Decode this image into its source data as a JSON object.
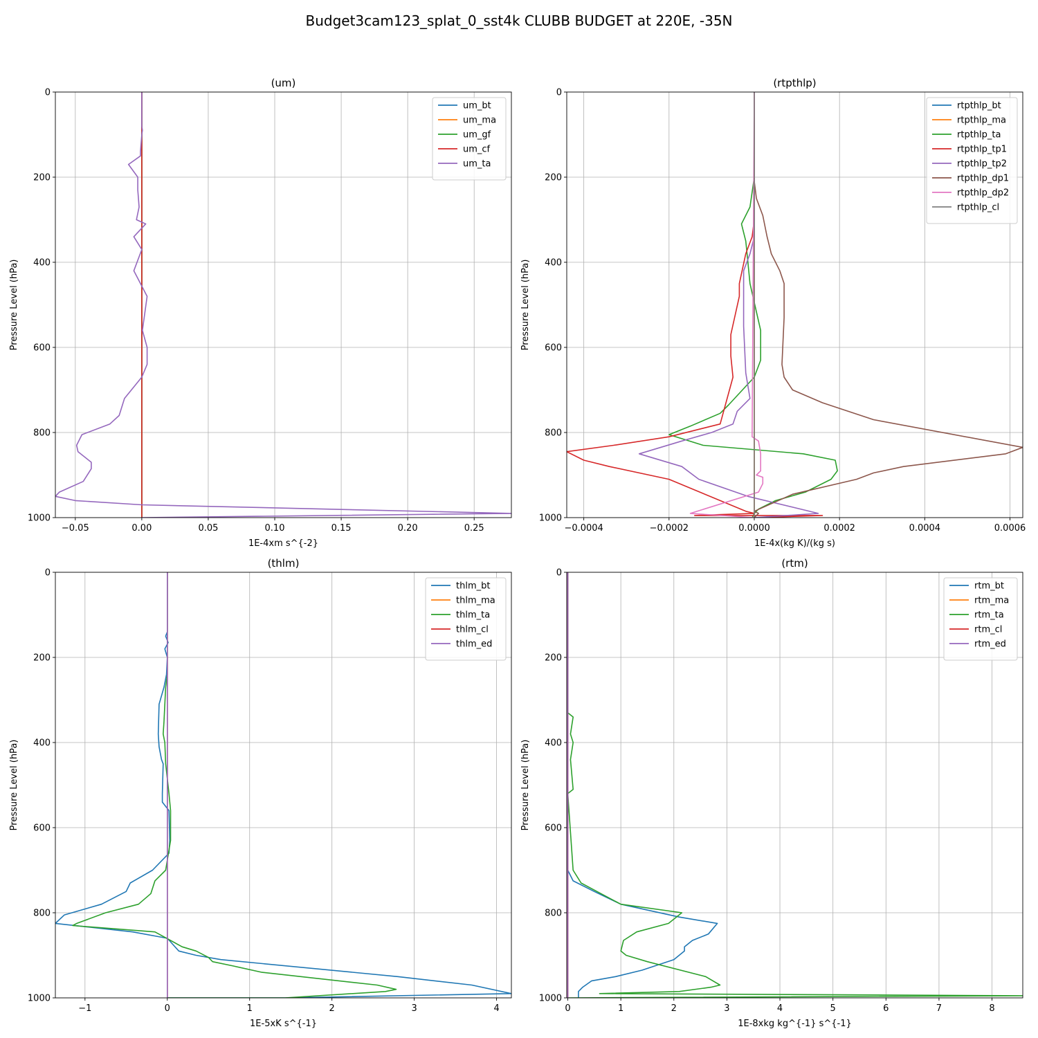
{
  "figure": {
    "title": "Budget3cam123_splat_0_sst4k CLUBB BUDGET at 220E, -35N"
  },
  "chart_data": [
    {
      "type": "line",
      "title": "(um)",
      "xlabel": "1E-4xm s^{-2}",
      "ylabel": "Pressure Level (hPa)",
      "xlim": [
        -0.065,
        0.278
      ],
      "ylim": [
        1000,
        0
      ],
      "xticks": [
        -0.05,
        0.0,
        0.05,
        0.1,
        0.15,
        0.2,
        0.25
      ],
      "xtick_labels": [
        "−0.05",
        "0.00",
        "0.05",
        "0.10",
        "0.15",
        "0.20",
        "0.25"
      ],
      "yticks": [
        0,
        200,
        400,
        600,
        800,
        1000
      ],
      "grid": true,
      "legend_position": "upper right",
      "series": [
        {
          "name": "um_bt",
          "color": "#1f77b4",
          "x": [
            0,
            0
          ],
          "p": [
            0,
            1000
          ]
        },
        {
          "name": "um_ma",
          "color": "#ff7f0e",
          "x": [
            0,
            0
          ],
          "p": [
            0,
            1000
          ]
        },
        {
          "name": "um_gf",
          "color": "#2ca02c",
          "x": [
            0,
            0
          ],
          "p": [
            0,
            1000
          ]
        },
        {
          "name": "um_cf",
          "color": "#d62728",
          "x": [
            0,
            0
          ],
          "p": [
            0,
            1000
          ]
        },
        {
          "name": "um_ta",
          "color": "#9467bd",
          "x": [
            0,
            0,
            0.0005,
            0,
            -0.001,
            -0.001,
            -0.01,
            -0.003,
            -0.003,
            -0.002,
            -0.004,
            0.003,
            -0.006,
            0,
            -0.006,
            0.004,
            0.0005,
            0.004,
            0.004,
            0,
            -0.013,
            -0.017,
            -0.024,
            -0.045,
            -0.049,
            -0.048,
            -0.038,
            -0.038,
            -0.044,
            -0.062,
            -0.065,
            -0.05,
            0,
            0.278,
            0
          ],
          "p": [
            0,
            80,
            90,
            100,
            140,
            150,
            170,
            200,
            230,
            270,
            300,
            310,
            340,
            370,
            420,
            480,
            560,
            600,
            640,
            670,
            720,
            760,
            780,
            805,
            830,
            845,
            870,
            885,
            915,
            940,
            950,
            960,
            970,
            990,
            1000
          ]
        }
      ]
    },
    {
      "type": "line",
      "title": "(rtpthlp)",
      "xlabel": "1E-4x(kg K)/(kg s)",
      "ylabel": "Pressure Level (hPa)",
      "xlim": [
        -0.00044,
        0.00063
      ],
      "ylim": [
        1000,
        0
      ],
      "xticks": [
        -0.0004,
        -0.0002,
        0.0,
        0.0002,
        0.0004,
        0.0006
      ],
      "xtick_labels": [
        "−0.0004",
        "−0.0002",
        "0.0000",
        "0.0002",
        "0.0004",
        "0.0006"
      ],
      "yticks": [
        0,
        200,
        400,
        600,
        800,
        1000
      ],
      "grid": true,
      "legend_position": "upper right",
      "series": [
        {
          "name": "rtpthlp_bt",
          "color": "#1f77b4",
          "x": [
            0,
            0
          ],
          "p": [
            0,
            1000
          ]
        },
        {
          "name": "rtpthlp_ma",
          "color": "#ff7f0e",
          "x": [
            0,
            0
          ],
          "p": [
            0,
            1000
          ]
        },
        {
          "name": "rtpthlp_ta",
          "color": "#2ca02c",
          "x": [
            0,
            0,
            -1e-05,
            -3e-05,
            -2.5e-05,
            -2e-05,
            -1.5e-05,
            -1e-05,
            1.5e-05,
            1.5e-05,
            0,
            -6e-05,
            -8e-05,
            -0.00015,
            -0.0002,
            -0.00012,
            0.000115,
            0.00019,
            0.000195,
            0.00018,
            0.00012,
            5e-05,
            1e-05,
            0,
            -5e-06
          ],
          "p": [
            0,
            200,
            270,
            310,
            330,
            350,
            400,
            450,
            560,
            630,
            670,
            735,
            755,
            785,
            805,
            830,
            850,
            865,
            890,
            910,
            940,
            960,
            980,
            990,
            1000
          ]
        },
        {
          "name": "rtpthlp_tp1",
          "color": "#d62728",
          "x": [
            0,
            0,
            -5e-06,
            -2e-05,
            -3.5e-05,
            -3.5e-05,
            -5.5e-05,
            -5.5e-05,
            -5e-05,
            -8e-05,
            -0.0002,
            -0.00033,
            -0.00044,
            -0.0004,
            -0.00034,
            -0.0002,
            -2e-05,
            0,
            -0.00014,
            0.00016,
            0
          ],
          "p": [
            0,
            300,
            340,
            380,
            450,
            480,
            570,
            620,
            670,
            780,
            810,
            830,
            845,
            865,
            880,
            910,
            985,
            990,
            995,
            995,
            1000
          ]
        },
        {
          "name": "rtpthlp_tp2",
          "color": "#9467bd",
          "x": [
            0,
            0,
            -1e-05,
            -2.5e-05,
            -2.5e-05,
            -2e-05,
            -1e-05,
            -4e-05,
            -5e-05,
            -0.0001,
            -0.00017,
            -0.00027,
            -0.00017,
            -0.00013,
            -1.5e-05,
            0.00015,
            0
          ],
          "p": [
            0,
            340,
            380,
            420,
            550,
            660,
            720,
            750,
            780,
            800,
            820,
            850,
            880,
            910,
            950,
            990,
            1000
          ]
        },
        {
          "name": "rtpthlp_dp1",
          "color": "#8c564b",
          "x": [
            0,
            0,
            5e-06,
            2e-05,
            3e-05,
            4e-05,
            6e-05,
            7e-05,
            7e-05,
            6.5e-05,
            7e-05,
            9e-05,
            0.00016,
            0.00028,
            0.00063,
            0.00059,
            0.00035,
            0.00028,
            0.00024,
            9e-05,
            0,
            1e-05,
            0
          ],
          "p": [
            0,
            210,
            250,
            290,
            340,
            380,
            420,
            450,
            530,
            640,
            670,
            700,
            730,
            770,
            835,
            850,
            880,
            895,
            910,
            945,
            985,
            990,
            1000
          ]
        },
        {
          "name": "rtpthlp_dp2",
          "color": "#e377c2",
          "x": [
            0,
            -5e-06,
            1e-05,
            1.5e-05,
            1.5e-05,
            5e-06,
            2e-05,
            2e-05,
            1e-05,
            -0.00015,
            0
          ],
          "p": [
            0,
            810,
            820,
            850,
            890,
            900,
            905,
            920,
            940,
            990,
            1000
          ]
        },
        {
          "name": "rtpthlp_cl",
          "color": "#7f7f7f",
          "x": [
            0,
            0
          ],
          "p": [
            0,
            1000
          ]
        }
      ]
    },
    {
      "type": "line",
      "title": "(thlm)",
      "xlabel": "1E-5xK s^{-1}",
      "ylabel": "Pressure Level (hPa)",
      "xlim": [
        -1.36,
        4.18
      ],
      "ylim": [
        1000,
        0
      ],
      "xticks": [
        -1,
        0,
        1,
        2,
        3,
        4
      ],
      "xtick_labels": [
        "−1",
        "0",
        "1",
        "2",
        "3",
        "4"
      ],
      "yticks": [
        0,
        200,
        400,
        600,
        800,
        1000
      ],
      "grid": true,
      "legend_position": "upper right",
      "series": [
        {
          "name": "thlm_bt",
          "color": "#1f77b4",
          "x": [
            0,
            0,
            -0.02,
            0.01,
            -0.03,
            0,
            -0.01,
            -0.04,
            -0.1,
            -0.11,
            -0.1,
            -0.07,
            -0.05,
            -0.06,
            -0.06,
            0.02,
            0.03,
            0.02,
            -0.18,
            -0.45,
            -0.5,
            -0.8,
            -1.25,
            -1.36,
            -0.42,
            0,
            0.14,
            0.35,
            0.65,
            2.8,
            3.7,
            4.18,
            1.43,
            0
          ],
          "p": [
            0,
            140,
            150,
            165,
            180,
            200,
            240,
            270,
            310,
            380,
            410,
            440,
            450,
            520,
            540,
            560,
            630,
            660,
            700,
            730,
            750,
            780,
            805,
            825,
            845,
            860,
            890,
            900,
            910,
            950,
            970,
            990,
            1000,
            1000
          ]
        },
        {
          "name": "thlm_ma",
          "color": "#ff7f0e",
          "x": [
            0,
            0
          ],
          "p": [
            0,
            1000
          ]
        },
        {
          "name": "thlm_ta",
          "color": "#2ca02c",
          "x": [
            0,
            0,
            0,
            -0.02,
            -0.03,
            -0.04,
            -0.05,
            -0.03,
            -0.02,
            0.02,
            0.04,
            0.04,
            -0.02,
            -0.15,
            -0.2,
            -0.35,
            -0.75,
            -1.1,
            -1.15,
            -0.15,
            0.18,
            0.35,
            0.5,
            0.55,
            0.8,
            1.15,
            2.55,
            2.78,
            2.65,
            1.43,
            0
          ],
          "p": [
            0,
            200,
            240,
            270,
            310,
            350,
            380,
            400,
            450,
            520,
            560,
            630,
            700,
            725,
            755,
            780,
            800,
            825,
            830,
            845,
            880,
            890,
            905,
            915,
            925,
            940,
            970,
            980,
            985,
            1000,
            1000
          ]
        },
        {
          "name": "thlm_cl",
          "color": "#d62728",
          "x": [
            0,
            0
          ],
          "p": [
            0,
            1000
          ]
        },
        {
          "name": "thlm_ed",
          "color": "#9467bd",
          "x": [
            0,
            0
          ],
          "p": [
            0,
            1000
          ]
        }
      ]
    },
    {
      "type": "line",
      "title": "(rtm)",
      "xlabel": "1E-8xkg kg^{-1} s^{-1}",
      "ylabel": "Pressure Level (hPa)",
      "xlim": [
        -0.02,
        8.58
      ],
      "ylim": [
        1000,
        0
      ],
      "xticks": [
        0,
        1,
        2,
        3,
        4,
        5,
        6,
        7,
        8
      ],
      "xtick_labels": [
        "0",
        "1",
        "2",
        "3",
        "4",
        "5",
        "6",
        "7",
        "8"
      ],
      "yticks": [
        0,
        200,
        400,
        600,
        800,
        1000
      ],
      "grid": true,
      "legend_position": "upper right",
      "series": [
        {
          "name": "rtm_bt",
          "color": "#1f77b4",
          "x": [
            0,
            0,
            0.1,
            0.5,
            1.0,
            2.1,
            2.82,
            2.65,
            2.35,
            2.2,
            2.2,
            2.0,
            1.4,
            0.9,
            0.45,
            0.28,
            0.2,
            0.2
          ],
          "p": [
            0,
            700,
            725,
            750,
            780,
            810,
            825,
            850,
            865,
            880,
            890,
            910,
            935,
            950,
            960,
            975,
            985,
            1000
          ]
        },
        {
          "name": "rtm_ma",
          "color": "#ff7f0e",
          "x": [
            0,
            0
          ],
          "p": [
            0,
            1000
          ]
        },
        {
          "name": "rtm_ta",
          "color": "#2ca02c",
          "x": [
            0,
            0,
            0.1,
            0.05,
            0.1,
            0.05,
            0.1,
            0,
            0.1,
            0.25,
            0.55,
            1.0,
            2.15,
            1.9,
            1.3,
            1.05,
            1.0,
            1.1,
            1.5,
            2.6,
            2.87,
            2.7,
            2.1,
            0.6,
            8.58,
            0
          ],
          "p": [
            0,
            330,
            340,
            380,
            400,
            440,
            510,
            520,
            700,
            730,
            750,
            780,
            800,
            825,
            845,
            865,
            890,
            900,
            915,
            950,
            970,
            975,
            985,
            990,
            995,
            1000
          ]
        },
        {
          "name": "rtm_cl",
          "color": "#d62728",
          "x": [
            0,
            0
          ],
          "p": [
            0,
            1000
          ]
        },
        {
          "name": "rtm_ed",
          "color": "#9467bd",
          "x": [
            0,
            0
          ],
          "p": [
            0,
            1000
          ]
        }
      ]
    }
  ]
}
